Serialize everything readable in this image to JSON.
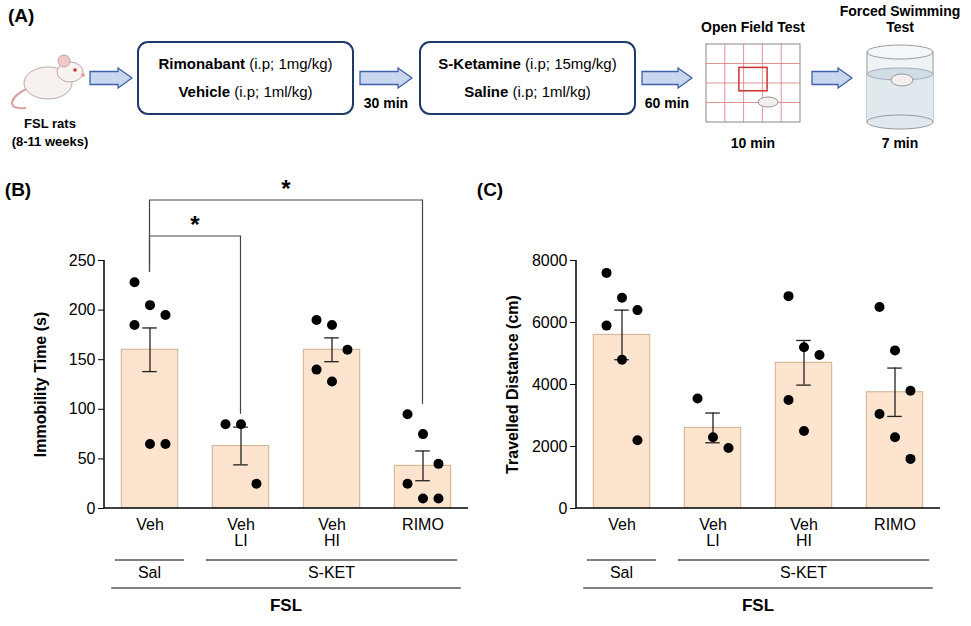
{
  "diagram": {
    "panel": "(A)",
    "subject": {
      "label": "FSL rats",
      "age": "(8-11 weeks)"
    },
    "steps": [
      {
        "treatments": [
          {
            "drug": "Rimonabant",
            "dose": "(i.p; 1mg/kg)"
          },
          {
            "drug": "Vehicle",
            "dose": "(i.p; 1ml/kg)"
          }
        ],
        "interval": "30 min"
      },
      {
        "treatments": [
          {
            "drug": "S-Ketamine",
            "dose": "(i.p; 15mg/kg)"
          },
          {
            "drug": "Saline",
            "dose": "(i.p; 1ml/kg)"
          }
        ],
        "interval": "60 min"
      }
    ],
    "tests": [
      {
        "name": "Open Field Test",
        "duration": "10 min"
      },
      {
        "name": "Forced Swimming Test",
        "duration": "7 min"
      }
    ]
  },
  "chart_data": [
    {
      "type": "bar",
      "panel": "(B)",
      "y_label": "Immobility Time (s)",
      "categories": [
        "Veh",
        "Veh\nLI",
        "Veh\nHI",
        "RIMO"
      ],
      "values": [
        160,
        63,
        160,
        43
      ],
      "errors": [
        22,
        19,
        12,
        15
      ],
      "points": [
        [
          228,
          205,
          195,
          185,
          65,
          65
        ],
        [
          85,
          85,
          25
        ],
        [
          190,
          185,
          160,
          140,
          128
        ],
        [
          95,
          75,
          45,
          25,
          10,
          10
        ]
      ],
      "color": "#fce4cf",
      "ylim": [
        0,
        250
      ],
      "yticks": [
        0,
        50,
        100,
        150,
        200,
        250
      ],
      "groups": [
        {
          "label": "Sal",
          "categories": [
            "Veh"
          ]
        },
        {
          "label": "S-KET",
          "categories": [
            "Veh\nLI",
            "Veh\nHI",
            "RIMO"
          ]
        }
      ],
      "group_label": "FSL",
      "annotations": [
        {
          "from": "Veh",
          "to": "Veh\nLI",
          "label": "*"
        },
        {
          "from": "Veh",
          "to": "RIMO",
          "label": "*"
        }
      ]
    },
    {
      "type": "bar",
      "panel": "(C)",
      "y_label": "Travelled Distance (cm)",
      "categories": [
        "Veh",
        "Veh\nLI",
        "Veh\nHI",
        "RIMO"
      ],
      "values": [
        5600,
        2600,
        4700,
        3750
      ],
      "errors": [
        800,
        480,
        720,
        780
      ],
      "points": [
        [
          7600,
          6800,
          6400,
          5900,
          4800,
          2200
        ],
        [
          3550,
          2300,
          1950
        ],
        [
          6850,
          5200,
          4950,
          3500,
          2500
        ],
        [
          6500,
          5100,
          3800,
          3050,
          2300,
          1600
        ]
      ],
      "color": "#fce4cf",
      "ylim": [
        0,
        8000
      ],
      "yticks": [
        0,
        2000,
        4000,
        6000,
        8000
      ],
      "groups": [
        {
          "label": "Sal",
          "categories": [
            "Veh"
          ]
        },
        {
          "label": "S-KET",
          "categories": [
            "Veh\nLI",
            "Veh\nHI",
            "RIMO"
          ]
        }
      ],
      "group_label": "FSL"
    }
  ]
}
